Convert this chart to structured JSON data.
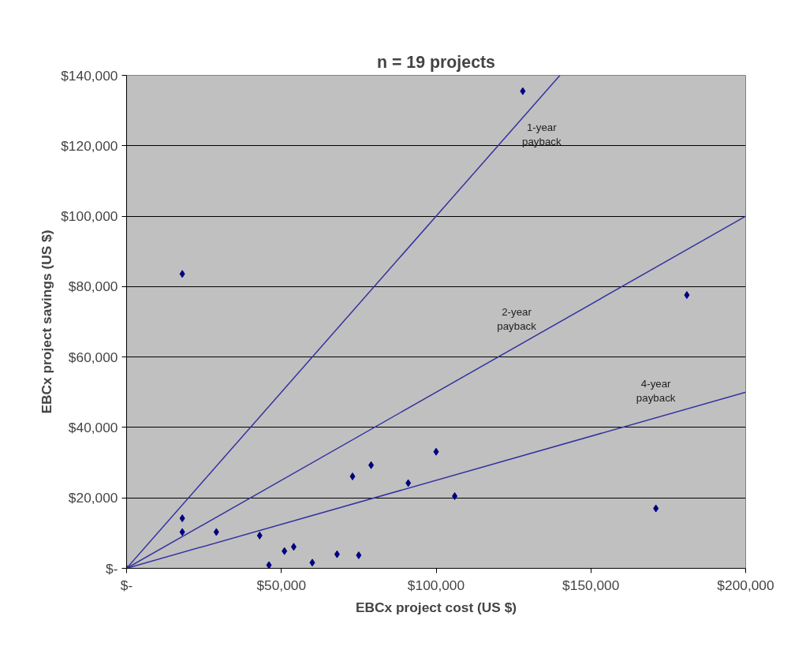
{
  "chart_data": {
    "type": "scatter",
    "title": "n = 19 projects",
    "xlabel": "EBCx project cost (US $)",
    "ylabel": "EBCx project savings (US $)",
    "xlim": [
      0,
      200000
    ],
    "ylim": [
      0,
      140000
    ],
    "xticks": [
      {
        "value": 0,
        "label": "$-"
      },
      {
        "value": 50000,
        "label": "$50,000"
      },
      {
        "value": 100000,
        "label": "$100,000"
      },
      {
        "value": 150000,
        "label": "$150,000"
      },
      {
        "value": 200000,
        "label": "$200,000"
      }
    ],
    "yticks": [
      {
        "value": 0,
        "label": "$-"
      },
      {
        "value": 20000,
        "label": "$20,000"
      },
      {
        "value": 40000,
        "label": "$40,000"
      },
      {
        "value": 60000,
        "label": "$60,000"
      },
      {
        "value": 80000,
        "label": "$80,000"
      },
      {
        "value": 100000,
        "label": "$100,000"
      },
      {
        "value": 120000,
        "label": "$120,000"
      },
      {
        "value": 140000,
        "label": "$140,000"
      }
    ],
    "grid": "y",
    "series": [
      {
        "marker": "diamond",
        "color": "#000080",
        "x": [
          18000,
          18000,
          18000,
          29000,
          43000,
          46000,
          51000,
          54000,
          60000,
          68000,
          75000,
          73000,
          79000,
          91000,
          100000,
          106000,
          128000,
          171000,
          181000
        ],
        "values": [
          83600,
          14200,
          10300,
          10300,
          9300,
          900,
          4900,
          6100,
          1600,
          4000,
          3700,
          26100,
          29300,
          24200,
          33100,
          20500,
          135500,
          17000,
          77600
        ]
      },
      {
        "marker": "diamond",
        "color": "#ff0000",
        "x": [
          0
        ],
        "values": [
          0
        ]
      },
      {
        "type": "line",
        "name": "1-year\npayback",
        "color": "#3333a0",
        "x": [
          0,
          140000
        ],
        "values": [
          0,
          140000
        ]
      },
      {
        "type": "line",
        "name": "2-year\npayback",
        "color": "#3333a0",
        "x": [
          0,
          200000
        ],
        "values": [
          0,
          100000
        ]
      },
      {
        "type": "line",
        "name": "4-year\npayback",
        "color": "#3333a0",
        "x": [
          0,
          200000
        ],
        "values": [
          0,
          50000
        ]
      }
    ]
  }
}
